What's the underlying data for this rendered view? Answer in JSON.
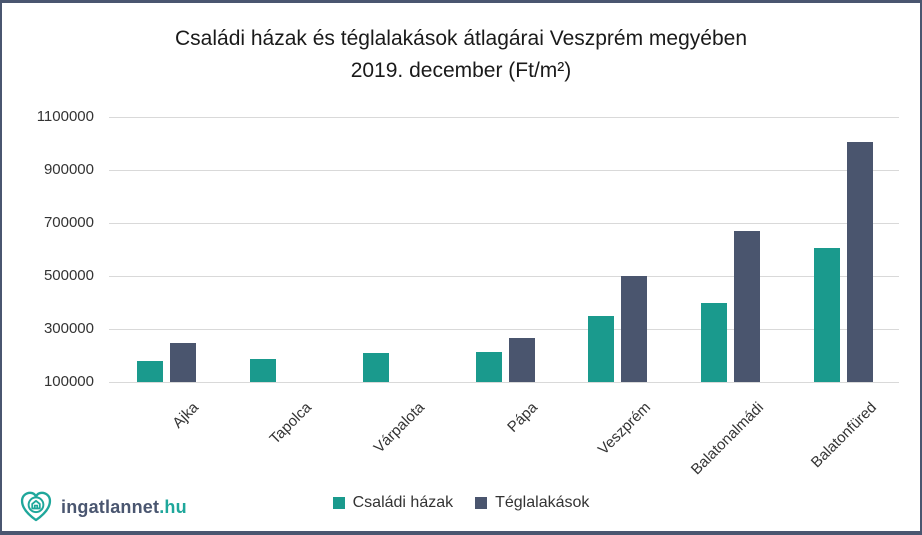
{
  "brand": {
    "logo_text": "ingatlannet",
    "logo_suffix": ".hu",
    "teal": "#1A9A8D",
    "slate": "#4A556E",
    "border_color": "#4A5670"
  },
  "chart_data": {
    "type": "bar",
    "title_line1": "Családi házak és téglalakások átlagárai Veszprém megyében",
    "title_line2": "2019. december (Ft/m²)",
    "categories": [
      "Ajka",
      "Tapolca",
      "Várpalota",
      "Pápa",
      "Veszprém",
      "Balatonalmádi",
      "Balatonfüred"
    ],
    "series": [
      {
        "name": "Családi házak",
        "color": "#1A9A8D",
        "values": [
          180000,
          185000,
          210000,
          212000,
          350000,
          400000,
          605000
        ]
      },
      {
        "name": "Téglalakások",
        "color": "#4A556E",
        "values": [
          248000,
          null,
          null,
          265000,
          500000,
          668000,
          1005000
        ]
      }
    ],
    "ylim": [
      100000,
      1100000
    ],
    "ytick_values": [
      1100000,
      900000,
      700000,
      500000,
      300000,
      100000
    ],
    "grid": "horizontal",
    "legend_position": "bottom-center"
  }
}
